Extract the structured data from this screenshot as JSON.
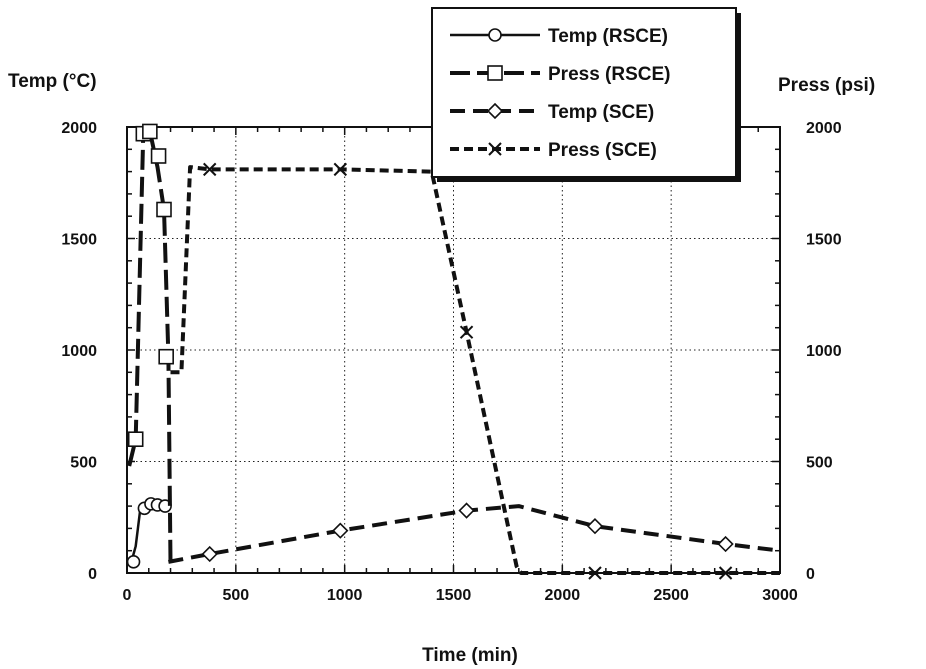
{
  "chart_data": {
    "type": "line",
    "xlabel": "Time (min)",
    "ylabel_left": "Temp (°C)",
    "ylabel_right": "Press (psi)",
    "xlim": [
      0,
      3000
    ],
    "ylim_left": [
      0,
      2000
    ],
    "ylim_right": [
      0,
      2000
    ],
    "x_ticks": [
      0,
      500,
      1000,
      1500,
      2000,
      2500,
      3000
    ],
    "y_ticks_left": [
      0,
      500,
      1000,
      1500,
      2000
    ],
    "y_ticks_right": [
      0,
      500,
      1000,
      1500,
      2000
    ],
    "grid": true,
    "legend_position": "top-right",
    "series": [
      {
        "name": "Temp (RSCE)",
        "line_style": "solid",
        "marker": "circle",
        "x": [
          20,
          40,
          60,
          80,
          100,
          120,
          140,
          160,
          180,
          190
        ],
        "y": [
          50,
          120,
          280,
          300,
          310,
          310,
          310,
          305,
          300,
          300
        ],
        "marker_x": [
          30,
          80,
          110,
          140,
          175
        ],
        "marker_y": [
          50,
          290,
          310,
          305,
          300
        ]
      },
      {
        "name": "Press (RSCE)",
        "line_style": "long-dash",
        "marker": "square",
        "x": [
          10,
          40,
          60,
          75,
          90,
          110,
          140,
          170,
          190,
          200
        ],
        "y": [
          480,
          600,
          1400,
          1980,
          2000,
          1960,
          1820,
          1630,
          970,
          50
        ],
        "marker_x": [
          40,
          75,
          105,
          145,
          170,
          180
        ],
        "marker_y": [
          600,
          1970,
          1980,
          1870,
          1630,
          970
        ]
      },
      {
        "name": "Temp (SCE)",
        "line_style": "dash",
        "marker": "diamond",
        "x": [
          190,
          380,
          980,
          1560,
          1800,
          2150,
          2750,
          3000
        ],
        "y": [
          50,
          85,
          190,
          280,
          300,
          210,
          130,
          100
        ],
        "marker_x": [
          380,
          980,
          1560,
          2150,
          2750
        ],
        "marker_y": [
          85,
          190,
          280,
          210,
          130
        ]
      },
      {
        "name": "Press (SCE)",
        "line_style": "short-dash",
        "marker": "x",
        "x": [
          200,
          250,
          290,
          380,
          980,
          1400,
          1560,
          1790,
          1810,
          2150,
          2750,
          3000
        ],
        "y": [
          900,
          900,
          1820,
          1810,
          1810,
          1800,
          1080,
          30,
          0,
          0,
          0,
          0
        ],
        "marker_x": [
          380,
          980,
          1560,
          2150,
          2750
        ],
        "marker_y": [
          1810,
          1810,
          1080,
          0,
          0
        ]
      }
    ]
  }
}
